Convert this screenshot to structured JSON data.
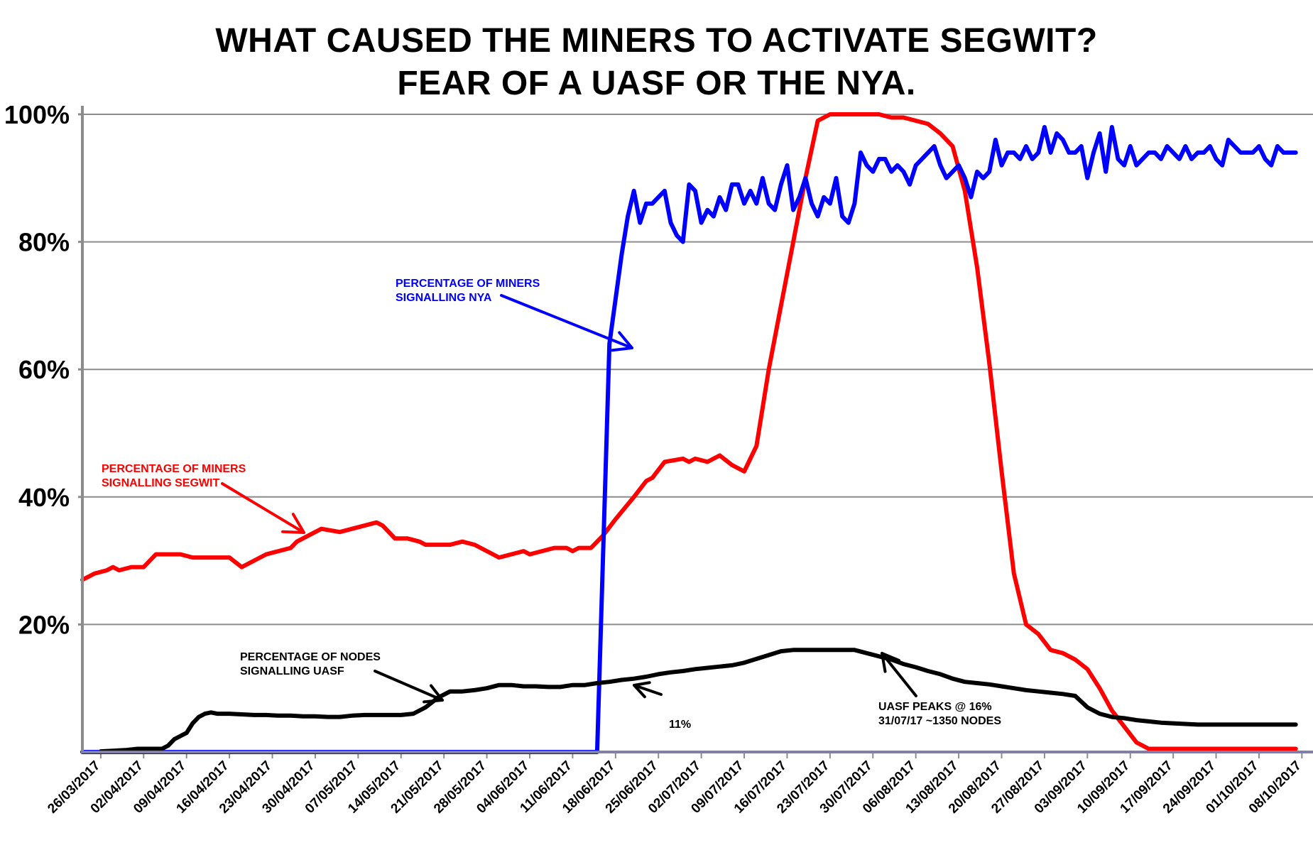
{
  "chart_data": {
    "type": "line",
    "title": "WHAT CAUSED THE MINERS TO ACTIVATE SEGWIT?",
    "subtitle": "FEAR OF A UASF OR THE NYA.",
    "ylim": [
      0,
      100
    ],
    "y_ticks": [
      "20%",
      "40%",
      "60%",
      "80%",
      "100%"
    ],
    "y_tick_values": [
      20,
      40,
      60,
      80,
      100
    ],
    "grid": true,
    "x_ticks": [
      "26/03/2017",
      "02/04/2017",
      "09/04/2017",
      "16/04/2017",
      "23/04/2017",
      "30/04/2017",
      "07/05/2017",
      "14/05/2017",
      "21/05/2017",
      "28/05/2017",
      "04/06/2017",
      "11/06/2017",
      "18/06/2017",
      "25/06/2017",
      "02/07/2017",
      "09/07/2017",
      "16/07/2017",
      "23/07/2017",
      "30/07/2017",
      "06/08/2017",
      "13/08/2017",
      "20/08/2017",
      "27/08/2017",
      "03/09/2017",
      "10/09/2017",
      "17/09/2017",
      "24/09/2017",
      "01/10/2017",
      "08/10/2017"
    ],
    "series": [
      {
        "name": "PERCENTAGE OF MINERS SIGNALLING SEGWIT",
        "color": "#ff0000",
        "x": [
          0,
          2,
          4,
          5,
          6,
          8,
          9,
          10,
          12,
          13,
          14,
          16,
          18,
          20,
          22,
          24,
          26,
          28,
          30,
          32,
          34,
          35,
          37,
          39,
          42,
          44,
          46,
          48,
          49,
          51,
          53,
          55,
          56,
          58,
          60,
          62,
          64,
          66,
          68,
          70,
          72,
          73,
          75,
          77,
          79,
          80,
          81,
          83,
          85,
          87,
          90,
          92,
          93,
          95,
          98,
          99,
          100,
          102,
          104,
          106,
          108,
          110,
          112,
          114,
          116,
          118,
          120,
          122,
          124,
          126,
          128,
          130,
          132,
          134,
          136,
          138,
          140,
          142,
          144,
          146,
          148,
          150,
          152,
          154,
          156,
          158,
          160,
          162,
          164,
          166,
          168,
          170,
          172,
          174,
          176,
          178,
          180,
          182,
          184,
          186,
          188,
          190,
          192,
          194,
          196,
          198
        ],
        "y": [
          27,
          28,
          28.5,
          29,
          28.5,
          29,
          29,
          29,
          31,
          31,
          31,
          31,
          30.5,
          30.5,
          30.5,
          30.5,
          29,
          30,
          31,
          31.5,
          32,
          33,
          34,
          35,
          34.5,
          35,
          35.5,
          36,
          35.5,
          33.5,
          33.5,
          33,
          32.5,
          32.5,
          32.5,
          33,
          32.5,
          31.5,
          30.5,
          31,
          31.5,
          31,
          31.5,
          32,
          32,
          31.5,
          32,
          32,
          34,
          36.5,
          40,
          42.5,
          43,
          45.5,
          46,
          45.5,
          46,
          45.5,
          46.5,
          45,
          44,
          48,
          60,
          70,
          80,
          90,
          99,
          100,
          100,
          100,
          100,
          100,
          99.5,
          99.5,
          99,
          98.5,
          97,
          95,
          88,
          76,
          61,
          44,
          28,
          20,
          18.5,
          16,
          15.5,
          14.5,
          13,
          10,
          6.5,
          4,
          1.5,
          0.5,
          0.5,
          0.5,
          0.5,
          0.5,
          0.5,
          0.5,
          0.5,
          0.5,
          0.5,
          0.5,
          0.5,
          0.5
        ]
      },
      {
        "name": "PERCENTAGE OF MINERS SIGNALLING NYA",
        "color": "#0000ff",
        "x": [
          0,
          10,
          20,
          30,
          40,
          50,
          60,
          70,
          80,
          84,
          86,
          88,
          89,
          90,
          91,
          92,
          93,
          94,
          95,
          96,
          97,
          98,
          99,
          100,
          101,
          102,
          103,
          104,
          105,
          106,
          107,
          108,
          109,
          110,
          111,
          112,
          113,
          114,
          115,
          116,
          117,
          118,
          119,
          120,
          121,
          122,
          123,
          124,
          125,
          126,
          127,
          128,
          129,
          130,
          131,
          132,
          133,
          134,
          135,
          136,
          137,
          138,
          139,
          140,
          141,
          142,
          143,
          144,
          145,
          146,
          147,
          148,
          149,
          150,
          151,
          152,
          153,
          154,
          155,
          156,
          157,
          158,
          159,
          160,
          161,
          162,
          163,
          164,
          165,
          166,
          167,
          168,
          169,
          170,
          171,
          172,
          173,
          174,
          175,
          176,
          177,
          178,
          179,
          180,
          181,
          182,
          183,
          184,
          185,
          186,
          187,
          188,
          189,
          190,
          191,
          192,
          193,
          194,
          195,
          196,
          197,
          198
        ],
        "y": [
          0,
          0,
          0,
          0,
          0,
          0,
          0,
          0,
          0,
          0,
          64,
          78,
          84,
          88,
          83,
          86,
          86,
          87,
          88,
          83,
          81,
          80,
          89,
          88,
          83,
          85,
          84,
          87,
          85,
          89,
          89,
          86,
          88,
          86,
          90,
          86,
          85,
          89,
          92,
          85,
          87,
          90,
          86,
          84,
          87,
          86,
          90,
          84,
          83,
          86,
          94,
          92,
          91,
          93,
          93,
          91,
          92,
          91,
          89,
          92,
          93,
          94,
          95,
          92,
          90,
          91,
          92,
          90,
          87,
          91,
          90,
          91,
          96,
          92,
          94,
          94,
          93,
          95,
          93,
          94,
          98,
          94,
          97,
          96,
          94,
          94,
          95,
          90,
          94,
          97,
          91,
          98,
          93,
          92,
          95,
          92,
          93,
          94,
          94,
          93,
          95,
          94,
          93,
          95,
          93,
          94,
          94,
          95,
          93,
          92,
          96,
          95,
          94,
          94,
          94,
          95,
          93,
          92,
          95,
          94,
          94,
          94
        ]
      },
      {
        "name": "PERCENTAGE OF NODES SIGNALLING UASF",
        "color": "#000000",
        "x": [
          3,
          5,
          7,
          9,
          11,
          13,
          14,
          15,
          16,
          17,
          18,
          19,
          20,
          21,
          22,
          24,
          26,
          28,
          30,
          32,
          34,
          36,
          38,
          40,
          42,
          44,
          46,
          48,
          50,
          52,
          54,
          56,
          58,
          60,
          62,
          64,
          66,
          68,
          70,
          72,
          74,
          76,
          78,
          80,
          82,
          84,
          86,
          88,
          90,
          92,
          94,
          96,
          98,
          100,
          102,
          104,
          106,
          108,
          110,
          112,
          114,
          116,
          118,
          120,
          122,
          124,
          126,
          128,
          130,
          132,
          134,
          136,
          138,
          140,
          142,
          144,
          146,
          148,
          150,
          152,
          154,
          156,
          158,
          160,
          162,
          164,
          166,
          168,
          170,
          172,
          174,
          176,
          178,
          180,
          182,
          184,
          186,
          188,
          190,
          192,
          194,
          196,
          198
        ],
        "y": [
          0.1,
          0.2,
          0.3,
          0.5,
          0.5,
          0.5,
          1,
          2,
          2.5,
          3,
          4.5,
          5.5,
          6,
          6.2,
          6,
          6,
          5.9,
          5.8,
          5.8,
          5.7,
          5.7,
          5.6,
          5.6,
          5.5,
          5.5,
          5.7,
          5.8,
          5.8,
          5.8,
          5.8,
          6,
          7,
          8.5,
          9.5,
          9.5,
          9.7,
          10,
          10.5,
          10.5,
          10.3,
          10.3,
          10.2,
          10.2,
          10.5,
          10.5,
          10.8,
          11,
          11.3,
          11.5,
          11.8,
          12.2,
          12.5,
          12.7,
          13,
          13.2,
          13.4,
          13.6,
          14,
          14.6,
          15.2,
          15.8,
          16,
          16,
          16,
          16,
          16,
          16,
          15.5,
          15,
          14.5,
          13.8,
          13.3,
          12.7,
          12.2,
          11.5,
          11,
          10.8,
          10.6,
          10.3,
          10,
          9.7,
          9.5,
          9.3,
          9.1,
          8.8,
          7,
          6,
          5.5,
          5.3,
          5,
          4.8,
          4.6,
          4.5,
          4.4,
          4.3,
          4.3,
          4.3,
          4.3,
          4.3,
          4.3,
          4.3,
          4.3,
          4.3
        ]
      }
    ],
    "annotations": [
      {
        "lines": [
          "PERCENTAGE OF MINERS",
          "SIGNALLING NYA"
        ],
        "color": "#0000ff"
      },
      {
        "lines": [
          "PERCENTAGE OF MINERS",
          "SIGNALLING SEGWIT"
        ],
        "color": "#ff0000"
      },
      {
        "lines": [
          "PERCENTAGE OF NODES",
          "SIGNALLING UASF"
        ],
        "color": "#000000"
      },
      {
        "lines": [
          "11%"
        ],
        "color": "#000000"
      },
      {
        "lines": [
          "UASF PEAKS @ 16%",
          "31/07/17 ~1350 NODES"
        ],
        "color": "#000000"
      }
    ]
  }
}
